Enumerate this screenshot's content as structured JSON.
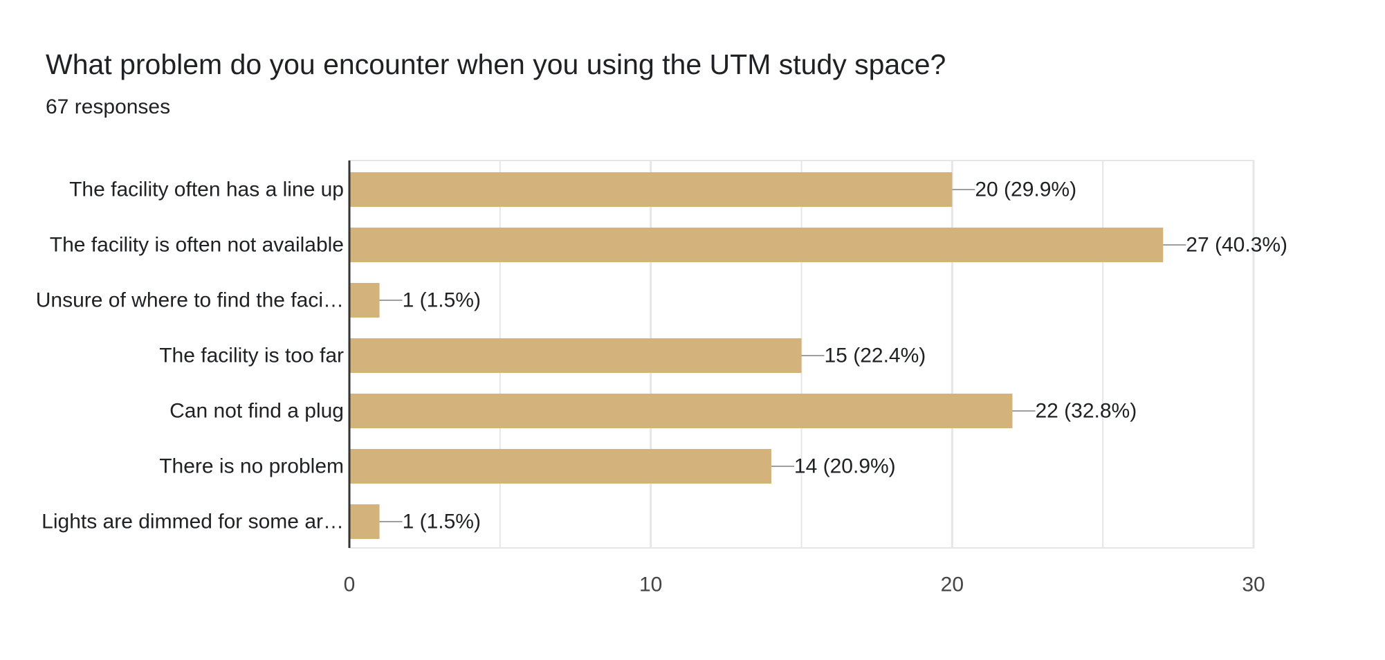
{
  "title": "What problem do you encounter when you using the UTM study space?",
  "subtitle": "67 responses",
  "colors": {
    "bar": "#d4b27b",
    "axis": "#333333",
    "grid": "#e6e6e6",
    "leader": "#9e9e9e",
    "text": "#202124",
    "tick_text": "#444444"
  },
  "chart_data": {
    "type": "bar",
    "orientation": "horizontal",
    "categories": [
      "The facility often has a line up",
      "The facility is often not available",
      "Unsure of where to find the faci…",
      "The facility is too far",
      "Can not find a plug",
      "There is no problem",
      "Lights are dimmed for some ar…"
    ],
    "values": [
      20,
      27,
      1,
      15,
      22,
      14,
      1
    ],
    "labels": [
      "20 (29.9%)",
      "27 (40.3%)",
      "1 (1.5%)",
      "15 (22.4%)",
      "22 (32.8%)",
      "14 (20.9%)",
      "1 (1.5%)"
    ],
    "xlim": [
      0,
      30
    ],
    "xticks": [
      0,
      10,
      20,
      30
    ],
    "minor_gridlines": [
      5,
      15,
      25
    ],
    "grid": true,
    "legend": "none"
  }
}
